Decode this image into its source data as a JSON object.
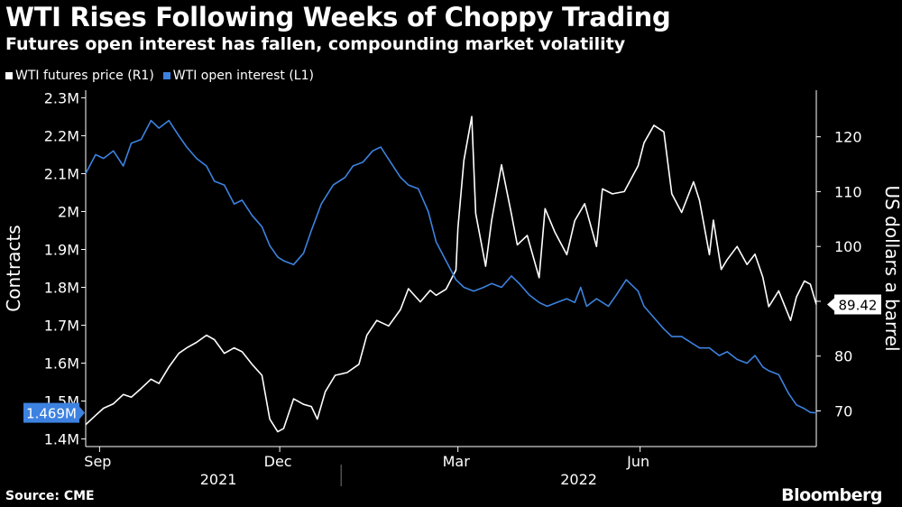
{
  "header": {
    "title": "WTI Rises Following Weeks of Choppy Trading",
    "subtitle": "Futures open interest has fallen, compounding market volatility"
  },
  "footer": {
    "source": "Source: CME",
    "brand": "Bloomberg"
  },
  "colors": {
    "price": "#ffffff",
    "oi": "#3d82e0",
    "axis": "#ffffff"
  },
  "chart_data": {
    "type": "line",
    "legend_position": "top-left",
    "grid": false,
    "left_axis": {
      "label": "Contracts",
      "range": [
        1.38,
        2.32
      ],
      "ticks": [
        1.4,
        1.5,
        1.6,
        1.7,
        1.8,
        1.9,
        2.0,
        2.1,
        2.2,
        2.3
      ],
      "tick_labels": [
        "1.4M",
        "1.5M",
        "1.6M",
        "1.7M",
        "1.8M",
        "1.9M",
        "2M",
        "2.1M",
        "2.2M",
        "2.3M"
      ]
    },
    "right_axis": {
      "label": "US dollars a barrel",
      "range": [
        63.5,
        128.5
      ],
      "ticks": [
        70,
        80,
        90,
        100,
        110,
        120
      ],
      "tick_labels": [
        "70",
        "80",
        "90",
        "100",
        "110",
        "120"
      ]
    },
    "x_axis": {
      "range": [
        "2021-08-25",
        "2022-08-29"
      ],
      "month_ticks": [
        {
          "date": "2021-09-01",
          "label": "Sep"
        },
        {
          "date": "2021-12-01",
          "label": "Dec"
        },
        {
          "date": "2022-03-01",
          "label": "Mar"
        },
        {
          "date": "2022-06-01",
          "label": "Jun"
        }
      ],
      "year_labels": [
        {
          "date": "2021-10-31",
          "label": "2021"
        },
        {
          "date": "2022-05-01",
          "label": "2022"
        }
      ],
      "year_divider": "2022-01-01"
    },
    "series": [
      {
        "name": "WTI futures price (R1)",
        "axis": "right",
        "last_label": "89.42",
        "points": [
          [
            "2021-08-25",
            67.5
          ],
          [
            "2021-08-30",
            69.2
          ],
          [
            "2021-09-03",
            70.5
          ],
          [
            "2021-09-08",
            71.3
          ],
          [
            "2021-09-13",
            73.0
          ],
          [
            "2021-09-17",
            72.5
          ],
          [
            "2021-09-22",
            74.1
          ],
          [
            "2021-09-27",
            75.8
          ],
          [
            "2021-10-01",
            75.0
          ],
          [
            "2021-10-06",
            78.0
          ],
          [
            "2021-10-11",
            80.5
          ],
          [
            "2021-10-15",
            81.5
          ],
          [
            "2021-10-20",
            82.5
          ],
          [
            "2021-10-25",
            83.8
          ],
          [
            "2021-10-29",
            83.0
          ],
          [
            "2021-11-03",
            80.5
          ],
          [
            "2021-11-08",
            81.5
          ],
          [
            "2021-11-12",
            80.8
          ],
          [
            "2021-11-17",
            78.5
          ],
          [
            "2021-11-22",
            76.5
          ],
          [
            "2021-11-26",
            68.5
          ],
          [
            "2021-11-30",
            66.2
          ],
          [
            "2021-12-03",
            66.8
          ],
          [
            "2021-12-08",
            72.2
          ],
          [
            "2021-12-13",
            71.2
          ],
          [
            "2021-12-17",
            70.8
          ],
          [
            "2021-12-20",
            68.5
          ],
          [
            "2021-12-24",
            73.5
          ],
          [
            "2021-12-29",
            76.5
          ],
          [
            "2022-01-04",
            77.0
          ],
          [
            "2022-01-10",
            78.5
          ],
          [
            "2022-01-14",
            83.8
          ],
          [
            "2022-01-19",
            86.5
          ],
          [
            "2022-01-25",
            85.5
          ],
          [
            "2022-01-31",
            88.5
          ],
          [
            "2022-02-04",
            92.3
          ],
          [
            "2022-02-10",
            89.9
          ],
          [
            "2022-02-15",
            92.0
          ],
          [
            "2022-02-18",
            91.1
          ],
          [
            "2022-02-23",
            92.2
          ],
          [
            "2022-02-28",
            95.7
          ],
          [
            "2022-03-01",
            103.4
          ],
          [
            "2022-03-04",
            115.7
          ],
          [
            "2022-03-08",
            123.7
          ],
          [
            "2022-03-10",
            106.0
          ],
          [
            "2022-03-15",
            96.4
          ],
          [
            "2022-03-18",
            104.7
          ],
          [
            "2022-03-23",
            114.9
          ],
          [
            "2022-03-28",
            105.9
          ],
          [
            "2022-03-31",
            100.3
          ],
          [
            "2022-04-05",
            102.0
          ],
          [
            "2022-04-11",
            94.3
          ],
          [
            "2022-04-14",
            106.9
          ],
          [
            "2022-04-19",
            102.6
          ],
          [
            "2022-04-25",
            98.5
          ],
          [
            "2022-04-29",
            104.7
          ],
          [
            "2022-05-04",
            107.8
          ],
          [
            "2022-05-10",
            100.0
          ],
          [
            "2022-05-13",
            110.5
          ],
          [
            "2022-05-18",
            109.6
          ],
          [
            "2022-05-24",
            110.0
          ],
          [
            "2022-05-31",
            114.7
          ],
          [
            "2022-06-03",
            118.9
          ],
          [
            "2022-06-08",
            122.1
          ],
          [
            "2022-06-13",
            120.9
          ],
          [
            "2022-06-17",
            109.6
          ],
          [
            "2022-06-22",
            106.2
          ],
          [
            "2022-06-28",
            111.8
          ],
          [
            "2022-07-01",
            108.4
          ],
          [
            "2022-07-06",
            98.5
          ],
          [
            "2022-07-08",
            104.8
          ],
          [
            "2022-07-12",
            95.8
          ],
          [
            "2022-07-15",
            97.6
          ],
          [
            "2022-07-20",
            100.0
          ],
          [
            "2022-07-25",
            96.7
          ],
          [
            "2022-07-29",
            98.6
          ],
          [
            "2022-08-02",
            94.4
          ],
          [
            "2022-08-05",
            89.0
          ],
          [
            "2022-08-10",
            91.9
          ],
          [
            "2022-08-16",
            86.5
          ],
          [
            "2022-08-19",
            90.8
          ],
          [
            "2022-08-23",
            93.7
          ],
          [
            "2022-08-26",
            93.1
          ],
          [
            "2022-08-29",
            89.42
          ]
        ]
      },
      {
        "name": "WTI open interest (L1)",
        "axis": "left",
        "last_label": "1.469M",
        "points": [
          [
            "2021-08-25",
            2.1
          ],
          [
            "2021-08-30",
            2.15
          ],
          [
            "2021-09-03",
            2.14
          ],
          [
            "2021-09-08",
            2.16
          ],
          [
            "2021-09-13",
            2.12
          ],
          [
            "2021-09-17",
            2.18
          ],
          [
            "2021-09-22",
            2.19
          ],
          [
            "2021-09-27",
            2.24
          ],
          [
            "2021-10-01",
            2.22
          ],
          [
            "2021-10-06",
            2.24
          ],
          [
            "2021-10-11",
            2.2
          ],
          [
            "2021-10-15",
            2.17
          ],
          [
            "2021-10-20",
            2.14
          ],
          [
            "2021-10-25",
            2.12
          ],
          [
            "2021-10-29",
            2.08
          ],
          [
            "2021-11-03",
            2.07
          ],
          [
            "2021-11-08",
            2.02
          ],
          [
            "2021-11-12",
            2.03
          ],
          [
            "2021-11-17",
            1.99
          ],
          [
            "2021-11-22",
            1.96
          ],
          [
            "2021-11-26",
            1.91
          ],
          [
            "2021-11-30",
            1.88
          ],
          [
            "2021-12-03",
            1.87
          ],
          [
            "2021-12-08",
            1.86
          ],
          [
            "2021-12-13",
            1.89
          ],
          [
            "2021-12-17",
            1.95
          ],
          [
            "2021-12-22",
            2.02
          ],
          [
            "2021-12-28",
            2.07
          ],
          [
            "2022-01-03",
            2.09
          ],
          [
            "2022-01-07",
            2.12
          ],
          [
            "2022-01-12",
            2.13
          ],
          [
            "2022-01-17",
            2.16
          ],
          [
            "2022-01-21",
            2.17
          ],
          [
            "2022-01-26",
            2.13
          ],
          [
            "2022-01-31",
            2.09
          ],
          [
            "2022-02-04",
            2.07
          ],
          [
            "2022-02-09",
            2.06
          ],
          [
            "2022-02-14",
            2.0
          ],
          [
            "2022-02-18",
            1.92
          ],
          [
            "2022-02-23",
            1.87
          ],
          [
            "2022-02-28",
            1.82
          ],
          [
            "2022-03-04",
            1.8
          ],
          [
            "2022-03-09",
            1.79
          ],
          [
            "2022-03-14",
            1.8
          ],
          [
            "2022-03-18",
            1.81
          ],
          [
            "2022-03-23",
            1.8
          ],
          [
            "2022-03-28",
            1.83
          ],
          [
            "2022-04-01",
            1.81
          ],
          [
            "2022-04-06",
            1.78
          ],
          [
            "2022-04-11",
            1.76
          ],
          [
            "2022-04-15",
            1.75
          ],
          [
            "2022-04-20",
            1.76
          ],
          [
            "2022-04-25",
            1.77
          ],
          [
            "2022-04-29",
            1.76
          ],
          [
            "2022-05-02",
            1.8
          ],
          [
            "2022-05-05",
            1.75
          ],
          [
            "2022-05-10",
            1.77
          ],
          [
            "2022-05-16",
            1.75
          ],
          [
            "2022-05-20",
            1.78
          ],
          [
            "2022-05-25",
            1.82
          ],
          [
            "2022-05-31",
            1.79
          ],
          [
            "2022-06-03",
            1.75
          ],
          [
            "2022-06-08",
            1.72
          ],
          [
            "2022-06-13",
            1.69
          ],
          [
            "2022-06-17",
            1.67
          ],
          [
            "2022-06-22",
            1.67
          ],
          [
            "2022-06-28",
            1.65
          ],
          [
            "2022-07-01",
            1.64
          ],
          [
            "2022-07-06",
            1.64
          ],
          [
            "2022-07-11",
            1.62
          ],
          [
            "2022-07-15",
            1.63
          ],
          [
            "2022-07-20",
            1.61
          ],
          [
            "2022-07-25",
            1.6
          ],
          [
            "2022-07-29",
            1.62
          ],
          [
            "2022-08-02",
            1.59
          ],
          [
            "2022-08-05",
            1.58
          ],
          [
            "2022-08-10",
            1.57
          ],
          [
            "2022-08-15",
            1.52
          ],
          [
            "2022-08-19",
            1.49
          ],
          [
            "2022-08-23",
            1.48
          ],
          [
            "2022-08-26",
            1.47
          ],
          [
            "2022-08-29",
            1.469
          ]
        ]
      }
    ]
  }
}
